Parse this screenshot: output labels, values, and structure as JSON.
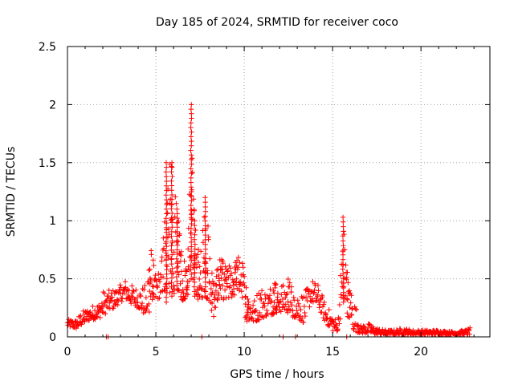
{
  "chart_data": {
    "type": "scatter",
    "title": "Day 185 of 2024, SRMTID for receiver coco",
    "xlabel": "GPS time / hours",
    "ylabel": "SRMTID / TECUs",
    "xlim": [
      0,
      23.9
    ],
    "ylim": [
      0,
      2.5
    ],
    "xticks": [
      0,
      5,
      10,
      15,
      20
    ],
    "xtick_labels": [
      "0",
      "5",
      "10",
      "15",
      "20"
    ],
    "yticks": [
      0,
      0.5,
      1,
      1.5,
      2,
      2.5
    ],
    "ytick_labels": [
      "0",
      "0.5",
      "1",
      "1.5",
      "2",
      "2.5"
    ],
    "grid": true,
    "marker": "+",
    "color": "#ff0000",
    "series": [
      {
        "name": "SRMTID",
        "envelope": [
          [
            0.0,
            0.09,
            0.15
          ],
          [
            0.5,
            0.07,
            0.15
          ],
          [
            0.8,
            0.1,
            0.22
          ],
          [
            1.2,
            0.14,
            0.25
          ],
          [
            1.5,
            0.15,
            0.28
          ],
          [
            1.8,
            0.16,
            0.3
          ],
          [
            2.0,
            0.18,
            0.4
          ],
          [
            2.3,
            0.22,
            0.4
          ],
          [
            2.7,
            0.25,
            0.42
          ],
          [
            3.0,
            0.3,
            0.45
          ],
          [
            3.3,
            0.32,
            0.5
          ],
          [
            3.6,
            0.28,
            0.45
          ],
          [
            4.0,
            0.25,
            0.42
          ],
          [
            4.4,
            0.18,
            0.45
          ],
          [
            4.7,
            0.22,
            0.8
          ],
          [
            5.0,
            0.3,
            0.55
          ],
          [
            5.3,
            0.35,
            0.6
          ],
          [
            5.6,
            0.3,
            1.5
          ],
          [
            5.9,
            0.35,
            1.5
          ],
          [
            6.2,
            0.4,
            1.1
          ],
          [
            6.5,
            0.3,
            0.7
          ],
          [
            6.8,
            0.35,
            0.65
          ],
          [
            7.0,
            0.5,
            2.0
          ],
          [
            7.2,
            0.35,
            1.0
          ],
          [
            7.5,
            0.3,
            0.7
          ],
          [
            7.8,
            0.35,
            1.2
          ],
          [
            8.0,
            0.3,
            0.9
          ],
          [
            8.3,
            0.15,
            0.45
          ],
          [
            8.6,
            0.35,
            0.7
          ],
          [
            9.0,
            0.3,
            0.6
          ],
          [
            9.4,
            0.35,
            0.65
          ],
          [
            9.8,
            0.4,
            0.72
          ],
          [
            10.1,
            0.12,
            0.5
          ],
          [
            10.5,
            0.12,
            0.3
          ],
          [
            10.9,
            0.15,
            0.45
          ],
          [
            11.3,
            0.18,
            0.4
          ],
          [
            11.8,
            0.2,
            0.55
          ],
          [
            12.2,
            0.22,
            0.45
          ],
          [
            12.6,
            0.18,
            0.55
          ],
          [
            13.0,
            0.15,
            0.4
          ],
          [
            13.4,
            0.12,
            0.38
          ],
          [
            13.8,
            0.3,
            0.5
          ],
          [
            14.2,
            0.25,
            0.45
          ],
          [
            14.6,
            0.12,
            0.28
          ],
          [
            15.0,
            0.05,
            0.2
          ],
          [
            15.3,
            0.05,
            0.12
          ],
          [
            15.6,
            0.3,
            1.03
          ],
          [
            15.9,
            0.15,
            0.45
          ],
          [
            16.2,
            0.05,
            0.35
          ],
          [
            16.6,
            0.03,
            0.1
          ],
          [
            17.0,
            0.03,
            0.12
          ],
          [
            17.5,
            0.02,
            0.08
          ],
          [
            18.0,
            0.02,
            0.06
          ],
          [
            18.5,
            0.02,
            0.06
          ],
          [
            19.0,
            0.02,
            0.08
          ],
          [
            19.5,
            0.02,
            0.06
          ],
          [
            20.0,
            0.02,
            0.06
          ],
          [
            20.5,
            0.02,
            0.06
          ],
          [
            21.0,
            0.02,
            0.06
          ],
          [
            21.5,
            0.02,
            0.05
          ],
          [
            22.0,
            0.02,
            0.05
          ],
          [
            22.5,
            0.02,
            0.06
          ],
          [
            22.8,
            0.02,
            0.08
          ]
        ],
        "floor_points": [
          2.2,
          2.3,
          7.6,
          12.2,
          12.9,
          15.8
        ]
      }
    ]
  }
}
